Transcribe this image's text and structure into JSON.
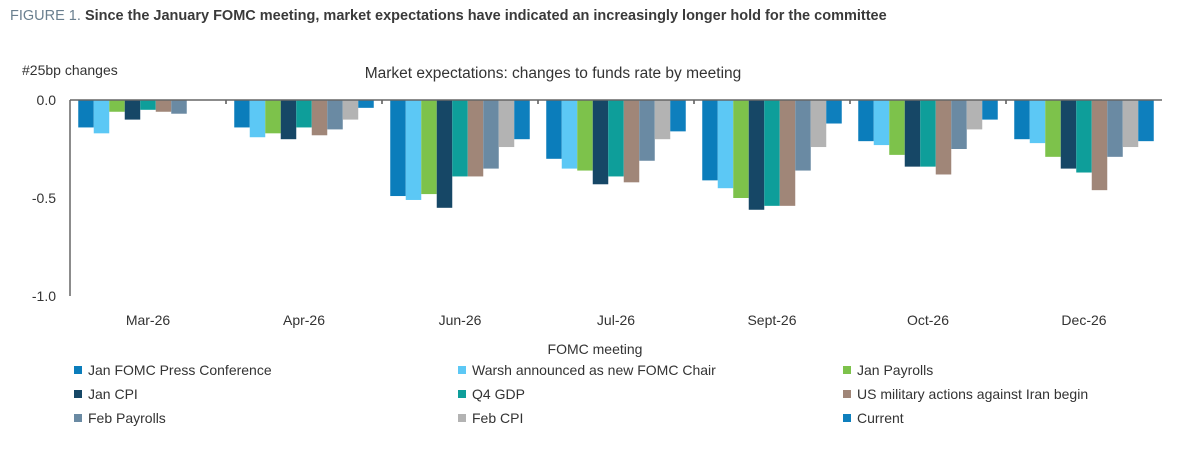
{
  "figure_title": {
    "label": "FIGURE 1.",
    "text": "Since the January FOMC meeting, market expectations have indicated an increasingly longer hold for the committee"
  },
  "chart_data": {
    "type": "bar",
    "title": "Market expectations: changes to funds rate by meeting",
    "ylabel": "#25bp changes",
    "xlabel": "FOMC meeting",
    "ylim": [
      -1.0,
      0.0
    ],
    "yticks": [
      "0.0",
      "-0.5",
      "-1.0"
    ],
    "ytick_values": [
      0.0,
      -0.5,
      -1.0
    ],
    "grid": false,
    "legend_position": "bottom",
    "categories": [
      "Mar-26",
      "Apr-26",
      "Jun-26",
      "Jul-26",
      "Sept-26",
      "Oct-26",
      "Dec-26"
    ],
    "series": [
      {
        "name": "Jan FOMC Press Conference",
        "color": "#0b7dbb",
        "values": [
          -0.14,
          -0.14,
          -0.49,
          -0.3,
          -0.41,
          -0.21,
          -0.2
        ]
      },
      {
        "name": "Warsh announced as new FOMC Chair",
        "color": "#5cc8f5",
        "values": [
          -0.17,
          -0.19,
          -0.51,
          -0.35,
          -0.45,
          -0.23,
          -0.22
        ]
      },
      {
        "name": "Jan Payrolls",
        "color": "#7dc24b",
        "values": [
          -0.06,
          -0.17,
          -0.48,
          -0.36,
          -0.5,
          -0.28,
          -0.29
        ]
      },
      {
        "name": "Jan CPI",
        "color": "#164766",
        "values": [
          -0.1,
          -0.2,
          -0.55,
          -0.43,
          -0.56,
          -0.34,
          -0.35
        ]
      },
      {
        "name": "Q4 GDP",
        "color": "#0e9e9a",
        "values": [
          -0.05,
          -0.14,
          -0.39,
          -0.39,
          -0.54,
          -0.34,
          -0.37
        ]
      },
      {
        "name": "US military actions against Iran begin",
        "color": "#a08678",
        "values": [
          -0.06,
          -0.18,
          -0.39,
          -0.42,
          -0.54,
          -0.38,
          -0.46
        ]
      },
      {
        "name": "Feb Payrolls",
        "color": "#6a8aa3",
        "values": [
          -0.07,
          -0.15,
          -0.35,
          -0.31,
          -0.36,
          -0.25,
          -0.29
        ]
      },
      {
        "name": "Feb CPI",
        "color": "#b3b3b3",
        "values": [
          0.0,
          -0.1,
          -0.24,
          -0.2,
          -0.24,
          -0.15,
          -0.24
        ]
      },
      {
        "name": "Current",
        "color": "#0e7fbd",
        "values": [
          0.0,
          -0.04,
          -0.2,
          -0.16,
          -0.12,
          -0.1,
          -0.21
        ]
      }
    ]
  }
}
